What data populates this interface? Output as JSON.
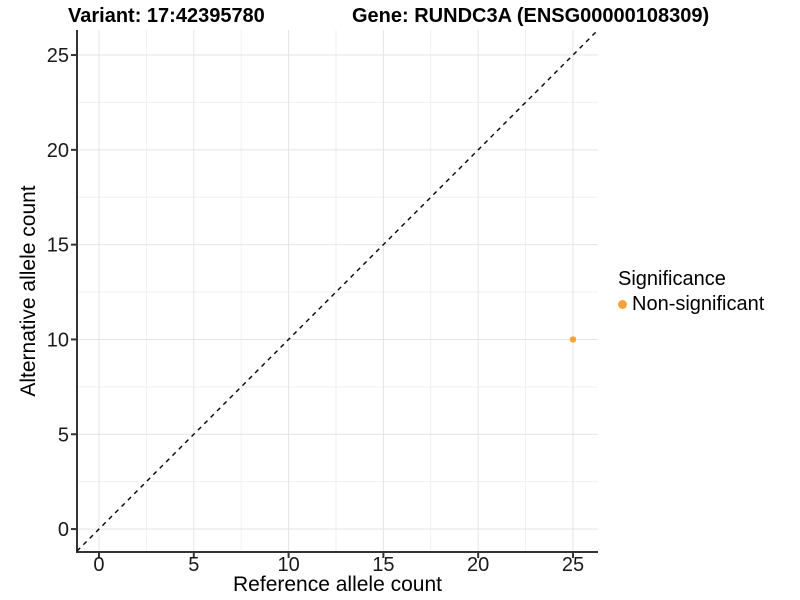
{
  "chart_data": {
    "type": "scatter",
    "title_left": "Variant: 17:42395780",
    "title_right": "Gene: RUNDC3A (ENSG00000108309)",
    "xlabel": "Reference allele count",
    "ylabel": "Alternative allele count",
    "xlim": [
      -1.16,
      26.32
    ],
    "ylim": [
      -1.21,
      26.32
    ],
    "xticks": [
      0,
      5,
      10,
      15,
      20,
      25
    ],
    "yticks": [
      0,
      5,
      10,
      15,
      20,
      25
    ],
    "xticks_minor": [
      2.5,
      7.5,
      12.5,
      17.5,
      22.5
    ],
    "yticks_minor": [
      2.5,
      7.5,
      12.5,
      17.5,
      22.5
    ],
    "grid": true,
    "identity_line": {
      "type": "dashed",
      "color": "#000000",
      "equation": "y = x"
    },
    "series": [
      {
        "name": "Non-significant",
        "color": "#F9A239",
        "points": [
          {
            "x": 25,
            "y": 10
          }
        ]
      }
    ],
    "legend": {
      "title": "Significance",
      "position": "right",
      "items": [
        {
          "label": "Non-significant",
          "color": "#F9A239"
        }
      ]
    },
    "colors": {
      "background": "#FFFFFF",
      "grid_major": "#E4E4E4",
      "grid_minor": "#F0F0F0",
      "axis": "#333333",
      "tick_label": "#1A1A1A",
      "point": "#F9A239"
    }
  }
}
